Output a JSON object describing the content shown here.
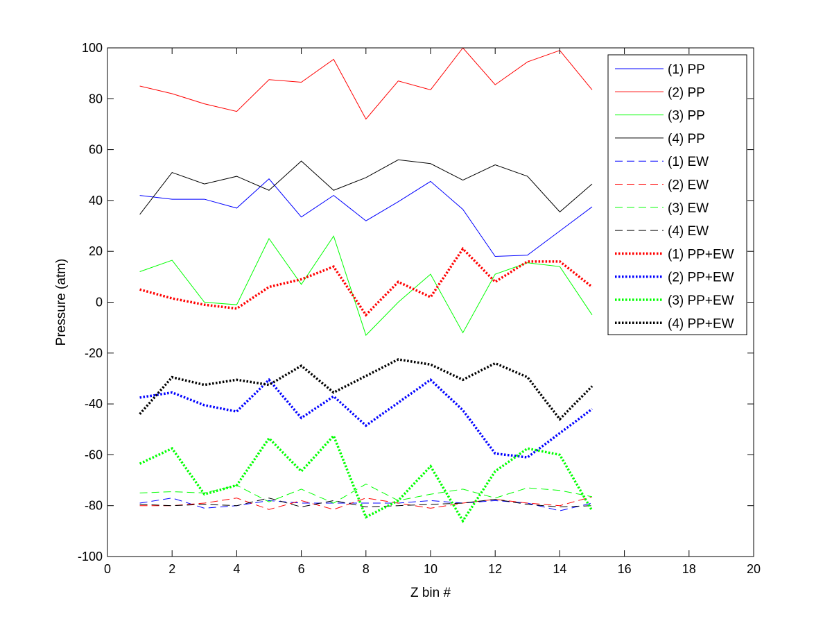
{
  "chart_data": {
    "type": "line",
    "title": "",
    "xlabel": "Z bin #",
    "ylabel": "Pressure (atm)",
    "xlim": [
      0,
      20
    ],
    "ylim": [
      -100,
      100
    ],
    "xticks": [
      0,
      2,
      4,
      6,
      8,
      10,
      12,
      14,
      16,
      18,
      20
    ],
    "yticks": [
      -100,
      -80,
      -60,
      -40,
      -20,
      0,
      20,
      40,
      60,
      80,
      100
    ],
    "grid": false,
    "legend_position": "top-right",
    "x": [
      1,
      2,
      3,
      4,
      5,
      6,
      7,
      8,
      9,
      10,
      11,
      12,
      13,
      14,
      15
    ],
    "series": [
      {
        "name": "(1) PP",
        "color": "#0000ff",
        "style": "solid",
        "values": [
          42,
          40.5,
          40.5,
          37,
          48.5,
          33.5,
          42,
          32,
          39.5,
          47.5,
          36.5,
          18,
          18.5,
          28,
          37.5
        ]
      },
      {
        "name": "(2) PP",
        "color": "#ff0000",
        "style": "solid",
        "values": [
          85,
          82,
          78,
          75,
          87.5,
          86.5,
          95.5,
          72,
          87,
          83.5,
          100,
          85.5,
          94.5,
          99,
          83.5
        ]
      },
      {
        "name": "(3) PP",
        "color": "#00ff00",
        "style": "solid",
        "values": [
          12,
          16.5,
          0,
          -1,
          25,
          7,
          26,
          -13,
          0,
          11,
          -12,
          11,
          15.5,
          14,
          -5
        ]
      },
      {
        "name": "(4) PP",
        "color": "#000000",
        "style": "solid",
        "values": [
          34.5,
          51,
          46.5,
          49.5,
          44,
          55.5,
          44,
          49,
          56,
          54.5,
          48,
          54,
          49.5,
          35.5,
          46.5
        ]
      },
      {
        "name": "(1) EW",
        "color": "#0000ff",
        "style": "dashed",
        "values": [
          -79,
          -77,
          -81,
          -80,
          -78,
          -79,
          -79,
          -79,
          -79,
          -78,
          -79,
          -78,
          -79,
          -82,
          -79
        ]
      },
      {
        "name": "(2) EW",
        "color": "#ff0000",
        "style": "dashed",
        "values": [
          -80,
          -80,
          -79,
          -77,
          -81.5,
          -78,
          -81.5,
          -77,
          -79,
          -81,
          -79,
          -77.5,
          -79,
          -80,
          -76.5
        ]
      },
      {
        "name": "(3) EW",
        "color": "#00ff00",
        "style": "dashed",
        "values": [
          -75,
          -74.5,
          -75,
          -72,
          -78.5,
          -73.5,
          -79,
          -71.5,
          -78,
          -75.5,
          -73.5,
          -77,
          -73,
          -74,
          -76.5
        ]
      },
      {
        "name": "(4) EW",
        "color": "#000000",
        "style": "dashed",
        "values": [
          -79.5,
          -80,
          -79.5,
          -80,
          -77,
          -80.5,
          -78,
          -80.5,
          -80,
          -79.5,
          -79,
          -77.5,
          -79.5,
          -80.5,
          -80
        ]
      },
      {
        "name": "(1) PP+EW",
        "color": "#ff0000",
        "style": "dotted",
        "values": [
          5,
          1.5,
          -1,
          -2.5,
          6,
          9,
          14,
          -5,
          8,
          2,
          21,
          8,
          16,
          16,
          6
        ]
      },
      {
        "name": "(2) PP+EW",
        "color": "#0000ff",
        "style": "dotted",
        "values": [
          -37.5,
          -35.5,
          -40.5,
          -43,
          -30.5,
          -45.5,
          -37,
          -48.5,
          -39.5,
          -30.5,
          -42.5,
          -59.5,
          -61,
          -51.5,
          -42
        ]
      },
      {
        "name": "(3) PP+EW",
        "color": "#00ff00",
        "style": "dotted",
        "values": [
          -63.5,
          -57.5,
          -75.5,
          -72,
          -53.5,
          -66.5,
          -52.5,
          -84.5,
          -78,
          -64.5,
          -86,
          -66.5,
          -57.5,
          -60,
          -82
        ]
      },
      {
        "name": "(4) PP+EW",
        "color": "#000000",
        "style": "dotted",
        "values": [
          -44,
          -29.5,
          -32.5,
          -30.5,
          -32.5,
          -25,
          -35.5,
          -29,
          -22.5,
          -24.5,
          -30.5,
          -24,
          -29.5,
          -46,
          -33
        ]
      }
    ]
  }
}
